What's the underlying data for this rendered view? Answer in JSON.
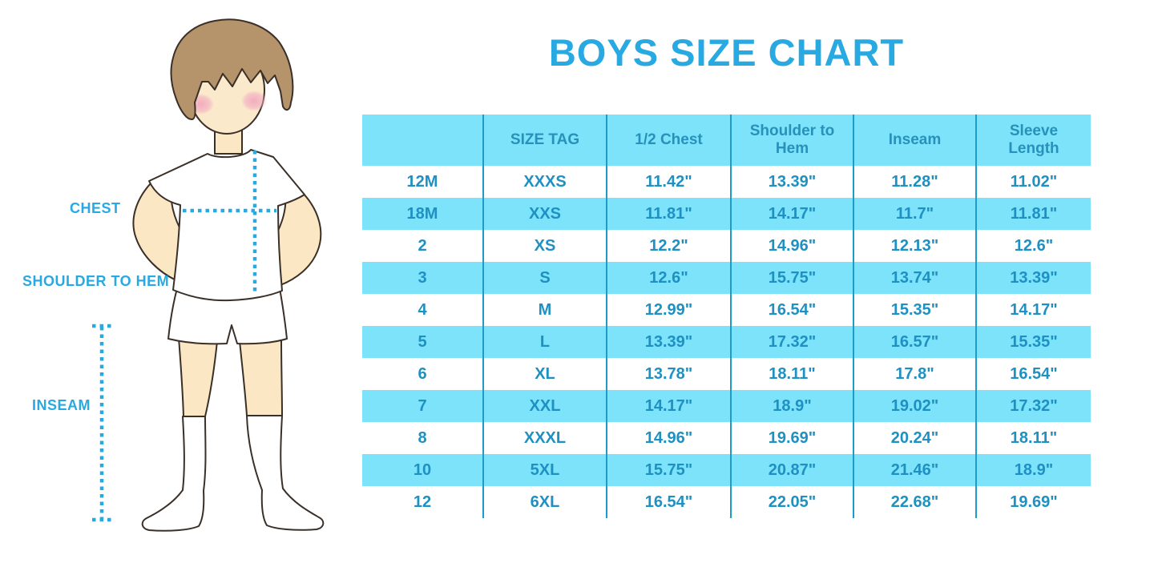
{
  "title": "BOYS SIZE CHART",
  "colors": {
    "accent_blue": "#29A9E1",
    "table_text": "#1E90C2",
    "stripe_cyan": "#7CE3FA",
    "divider_blue": "#1E9CC9",
    "skin": "#FBE7C3",
    "hair_brown": "#B5936B",
    "cheek_pink": "#F2A9BF",
    "outline": "#3A3028"
  },
  "figure": {
    "labels": {
      "chest": "CHEST",
      "shoulder_to_hem": "SHOULDER TO HEM",
      "inseam": "INSEAM"
    }
  },
  "chart_data": {
    "type": "table",
    "title": "BOYS SIZE CHART",
    "columns": [
      "",
      "SIZE TAG",
      "1/2 Chest",
      "Shoulder to Hem",
      "Inseam",
      "Sleeve Length"
    ],
    "rows": [
      [
        "12M",
        "XXXS",
        "11.42\"",
        "13.39\"",
        "11.28\"",
        "11.02\""
      ],
      [
        "18M",
        "XXS",
        "11.81\"",
        "14.17\"",
        "11.7\"",
        "11.81\""
      ],
      [
        "2",
        "XS",
        "12.2\"",
        "14.96\"",
        "12.13\"",
        "12.6\""
      ],
      [
        "3",
        "S",
        "12.6\"",
        "15.75\"",
        "13.74\"",
        "13.39\""
      ],
      [
        "4",
        "M",
        "12.99\"",
        "16.54\"",
        "15.35\"",
        "14.17\""
      ],
      [
        "5",
        "L",
        "13.39\"",
        "17.32\"",
        "16.57\"",
        "15.35\""
      ],
      [
        "6",
        "XL",
        "13.78\"",
        "18.11\"",
        "17.8\"",
        "16.54\""
      ],
      [
        "7",
        "XXL",
        "14.17\"",
        "18.9\"",
        "19.02\"",
        "17.32\""
      ],
      [
        "8",
        "XXXL",
        "14.96\"",
        "19.69\"",
        "20.24\"",
        "18.11\""
      ],
      [
        "10",
        "5XL",
        "15.75\"",
        "20.87\"",
        "21.46\"",
        "18.9\""
      ],
      [
        "12",
        "6XL",
        "16.54\"",
        "22.05\"",
        "22.68\"",
        "19.69\""
      ]
    ],
    "layout": {
      "striped_rows": "alternating white and cyan, header cyan",
      "grid": "vertical dividers only"
    }
  }
}
